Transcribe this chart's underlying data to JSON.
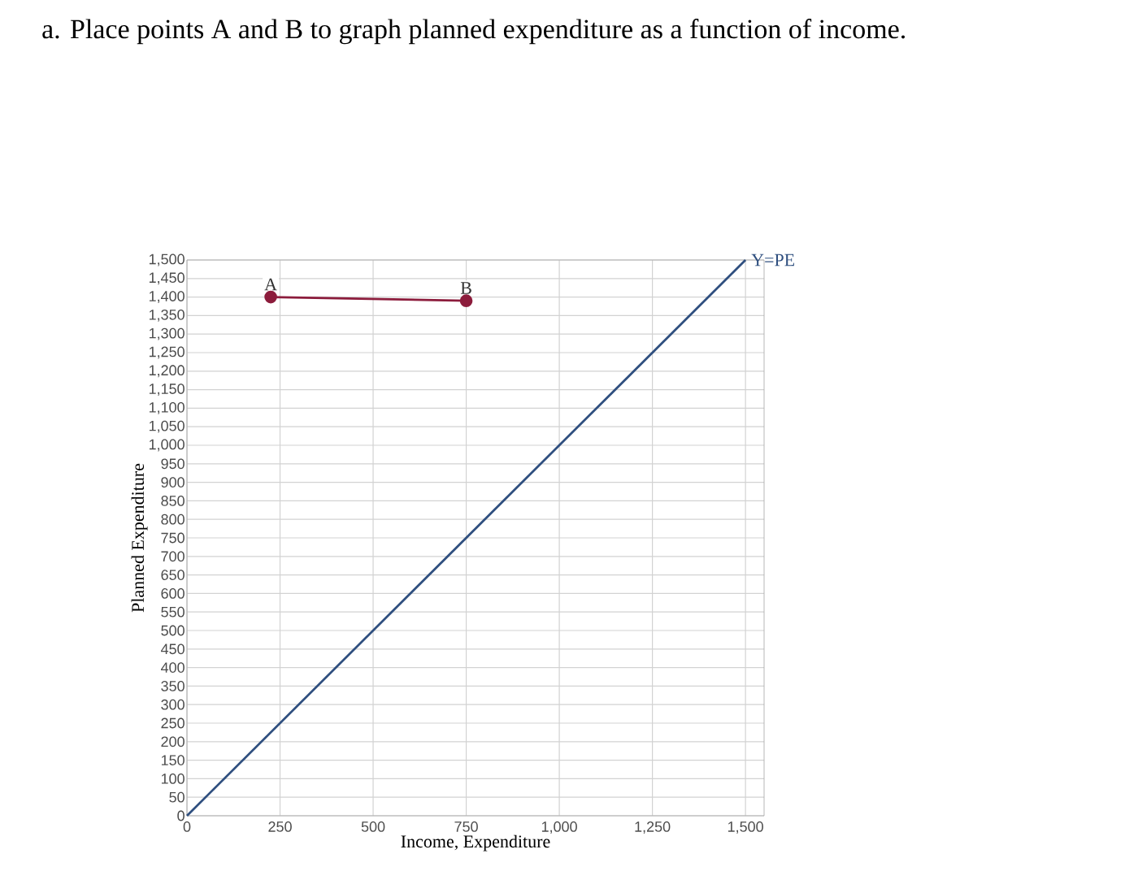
{
  "chart_data": {
    "type": "line",
    "title": "a. Place points A and B to graph planned expenditure as a function of income.",
    "xlabel": "Income, Expenditure",
    "ylabel": "Planned Expenditure",
    "xlim": [
      0,
      1550
    ],
    "ylim": [
      0,
      1500
    ],
    "xticks": [
      0,
      250,
      500,
      750,
      {
        "value": 1000,
        "label": "1,000"
      },
      {
        "value": 1250,
        "label": "1,250"
      },
      {
        "value": 1500,
        "label": "1,500"
      }
    ],
    "yticks": [
      0,
      50,
      100,
      150,
      200,
      250,
      300,
      350,
      400,
      450,
      500,
      550,
      600,
      650,
      700,
      750,
      800,
      850,
      900,
      950,
      {
        "value": 1000,
        "label": "1,000"
      },
      {
        "value": 1050,
        "label": "1,050"
      },
      {
        "value": 1100,
        "label": "1,100"
      },
      {
        "value": 1150,
        "label": "1,150"
      },
      {
        "value": 1200,
        "label": "1,200"
      },
      {
        "value": 1250,
        "label": "1,250"
      },
      {
        "value": 1300,
        "label": "1,300"
      },
      {
        "value": 1350,
        "label": "1,350"
      },
      {
        "value": 1400,
        "label": "1,400"
      },
      {
        "value": 1450,
        "label": "1,450"
      },
      {
        "value": 1500,
        "label": "1,500"
      }
    ],
    "grid": true,
    "series": [
      {
        "name": "Y=PE",
        "color": "#2f4f7f",
        "x": [
          0,
          1500
        ],
        "values": [
          0,
          1500
        ]
      },
      {
        "color": "#8c1c3c",
        "x": [
          225,
          750
        ],
        "values": [
          1400,
          1390
        ],
        "marker": "circle"
      }
    ],
    "annotations": [
      {
        "text": "A",
        "x": 225,
        "y": 1400
      },
      {
        "text": "B",
        "x": 750,
        "y": 1390
      }
    ]
  }
}
